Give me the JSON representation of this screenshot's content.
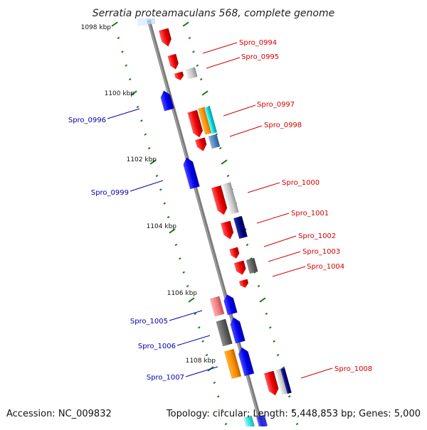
{
  "title": "Serratia proteamaculans 568, complete genome",
  "footer": {
    "accession": "Accession: NC_009832",
    "stats": "Topology: circular; Length: 5,448,853 bp; Genes: 5,000"
  },
  "colors": {
    "backbone": "#7a7a7a",
    "tick": "#1a7a1a",
    "forward_label": "#d40000",
    "reverse_label": "#0000b0"
  },
  "ticks": [
    {
      "label": "1098 kbp"
    },
    {
      "label": "1100 kbp"
    },
    {
      "label": "1102 kbp"
    },
    {
      "label": "1104 kbp"
    },
    {
      "label": "1106 kbp"
    },
    {
      "label": "1108 kbp"
    }
  ],
  "labels": {
    "forward": [
      "Spro_0994",
      "Spro_0995",
      "Spro_0997",
      "Spro_0998",
      "Spro_1000",
      "Spro_1001",
      "Spro_1002",
      "Spro_1003",
      "Spro_1004",
      "Spro_1008"
    ],
    "reverse": [
      "Spro_0996",
      "Spro_0999",
      "Spro_1005",
      "Spro_1006",
      "Spro_1007"
    ]
  }
}
